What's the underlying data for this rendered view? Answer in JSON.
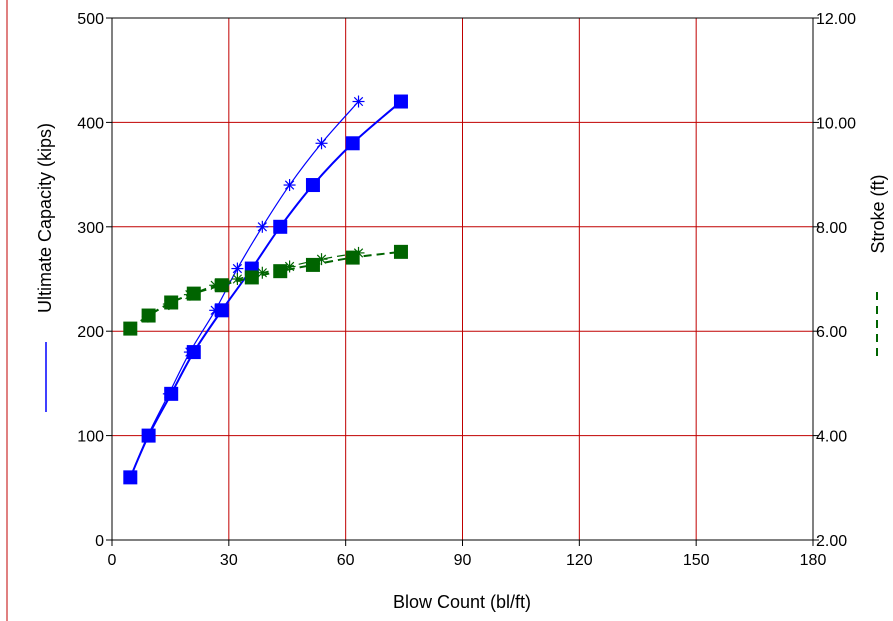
{
  "chart_data": {
    "type": "line",
    "title": "",
    "xlabel": "Blow Count (bl/ft)",
    "ylabel": "Ultimate Capacity (kips)",
    "y2label": "Stroke (ft)",
    "xlim": [
      0,
      180
    ],
    "ylim": [
      0,
      500
    ],
    "y2lim": [
      2.0,
      12.0
    ],
    "x_ticks": [
      0,
      30,
      60,
      90,
      120,
      150,
      180
    ],
    "y_ticks": [
      0,
      100,
      200,
      300,
      400,
      500
    ],
    "y2_ticks": [
      "2.00",
      "4.00",
      "6.00",
      "8.00",
      "10.00",
      "12.00"
    ],
    "grid": true,
    "colors": {
      "grid": "#c00000",
      "capacity": "#0000ff",
      "stroke": "#006400",
      "frame": "#c00000"
    },
    "series": [
      {
        "axis": "left",
        "marker": "square",
        "line": "solid",
        "x": [
          4.7,
          9.4,
          15.2,
          21.0,
          28.2,
          35.9,
          43.2,
          51.6,
          61.8,
          74.2
        ],
        "values": [
          60,
          100,
          140,
          180,
          220,
          260,
          300,
          340,
          380,
          420
        ]
      },
      {
        "axis": "left",
        "marker": "asterisk",
        "line": "solid",
        "x": [
          4.7,
          9.2,
          14.6,
          20.0,
          26.5,
          32.2,
          38.6,
          45.6,
          53.8,
          63.3
        ],
        "values": [
          60,
          100,
          140,
          180,
          220,
          260,
          300,
          340,
          380,
          420
        ]
      },
      {
        "axis": "right",
        "marker": "square",
        "line": "dashed",
        "x": [
          4.7,
          9.4,
          15.2,
          21.0,
          28.2,
          35.9,
          43.2,
          51.6,
          61.8,
          74.2
        ],
        "values": [
          6.05,
          6.3,
          6.55,
          6.72,
          6.88,
          7.03,
          7.15,
          7.27,
          7.41,
          7.52
        ]
      },
      {
        "axis": "right",
        "marker": "asterisk",
        "line": "dashed",
        "x": [
          4.7,
          9.2,
          14.6,
          20.0,
          26.5,
          32.2,
          38.6,
          45.6,
          53.8,
          63.3
        ],
        "values": [
          6.05,
          6.28,
          6.52,
          6.7,
          6.88,
          7.0,
          7.12,
          7.24,
          7.38,
          7.5
        ]
      }
    ]
  }
}
